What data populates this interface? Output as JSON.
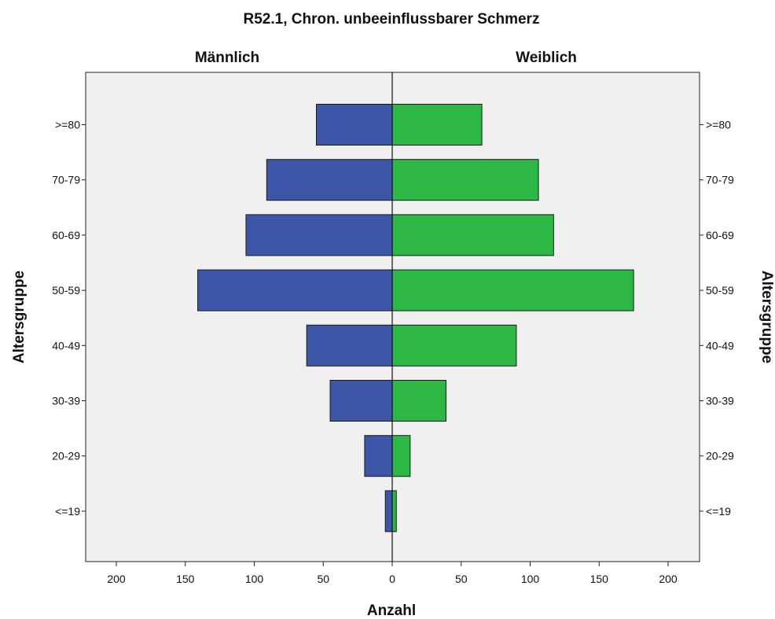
{
  "chart_data": {
    "type": "bar",
    "orientation": "horizontal-pyramid",
    "title": "R52.1, Chron. unbeeinflussbarer Schmerz",
    "categories": [
      ">=80",
      "70-79",
      "60-69",
      "50-59",
      "40-49",
      "30-39",
      "20-29",
      "<=19"
    ],
    "series": [
      {
        "name": "Männlich",
        "values": [
          55,
          91,
          106,
          141,
          62,
          45,
          20,
          5
        ],
        "color": "#3d56a8"
      },
      {
        "name": "Weiblich",
        "values": [
          65,
          106,
          117,
          175,
          90,
          39,
          13,
          3
        ],
        "color": "#2db845"
      }
    ],
    "xlabel": "Anzahl",
    "ylabel": "Altersgruppe",
    "xlim": [
      -200,
      200
    ],
    "xticks": [
      -200,
      -150,
      -100,
      -50,
      0,
      50,
      100,
      150,
      200
    ],
    "xtick_labels": [
      "200",
      "150",
      "100",
      "50",
      "0",
      "50",
      "100",
      "150",
      "200"
    ],
    "plot_background": "#f0f0f0",
    "grid": false,
    "legend": "none"
  }
}
